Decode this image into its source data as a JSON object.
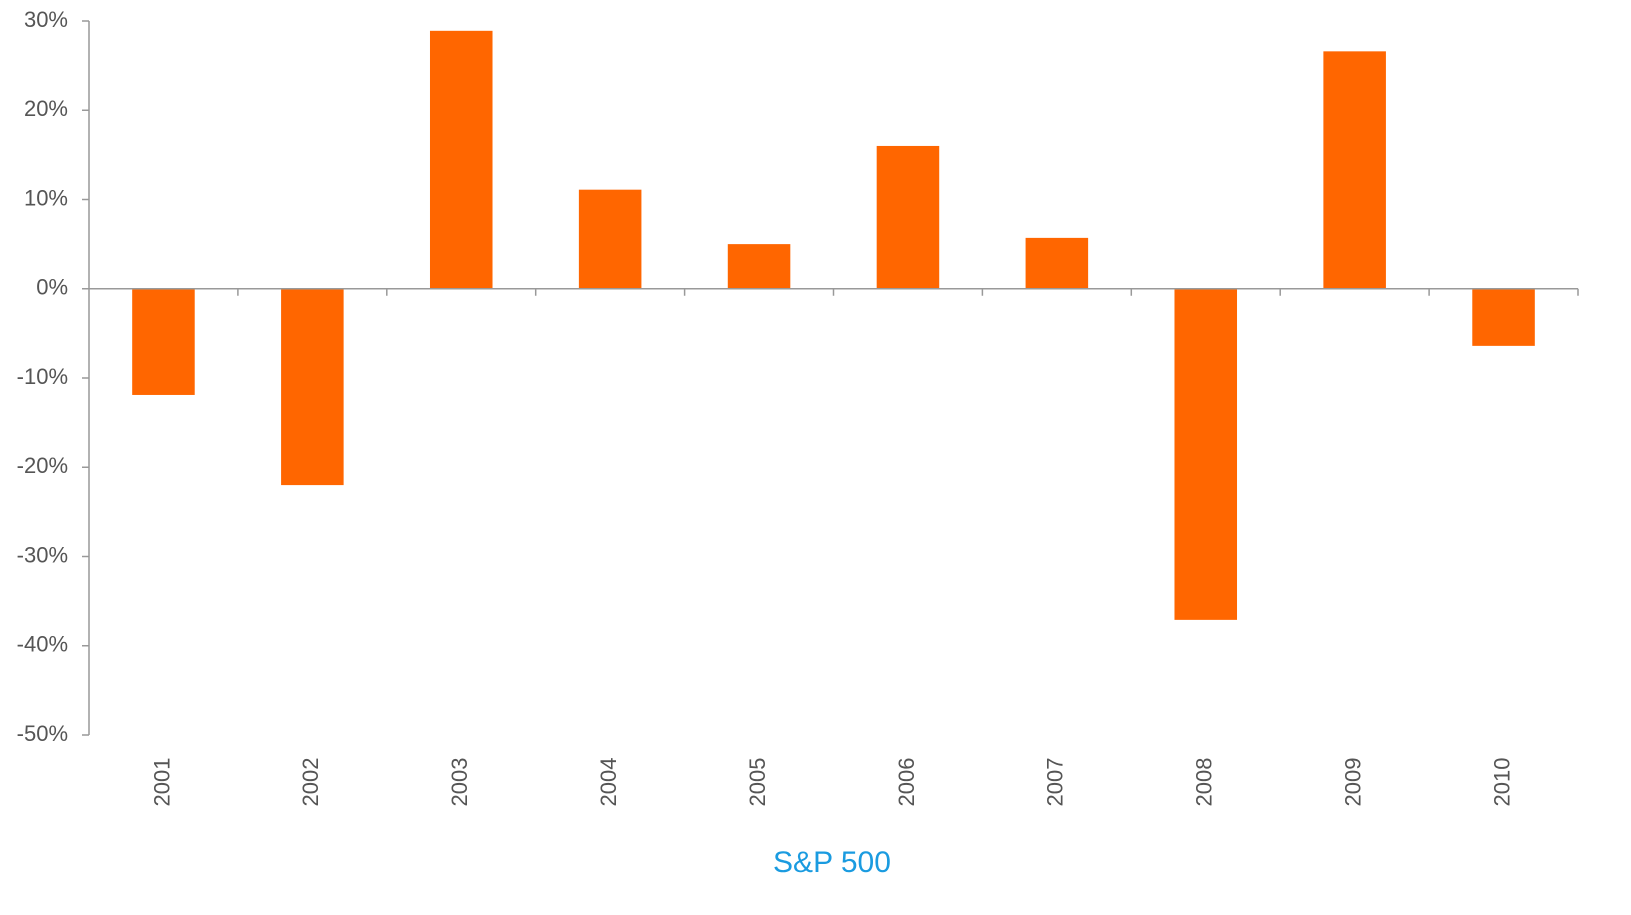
{
  "chart_data": {
    "type": "bar",
    "xlabel": "S&P 500",
    "categories": [
      "2001",
      "2002",
      "2003",
      "2004",
      "2005",
      "2006",
      "2007",
      "2008",
      "2009",
      "2010"
    ],
    "values": [
      -11.9,
      -22,
      28.9,
      11.1,
      5,
      16,
      5.7,
      -37.1,
      26.6,
      -6.4
    ],
    "color": "#ff6600",
    "ylim": [
      -50,
      30
    ],
    "yticks": [
      {
        "value": -50,
        "label": "-50%"
      },
      {
        "value": -40,
        "label": "-40%"
      },
      {
        "value": -30,
        "label": "-30%"
      },
      {
        "value": -20,
        "label": "-20%"
      },
      {
        "value": -10,
        "label": "-10%"
      },
      {
        "value": 0,
        "label": "0%"
      },
      {
        "value": 10,
        "label": "10%"
      },
      {
        "value": 20,
        "label": "20%"
      },
      {
        "value": 30,
        "label": "30%"
      }
    ],
    "grid": false
  }
}
